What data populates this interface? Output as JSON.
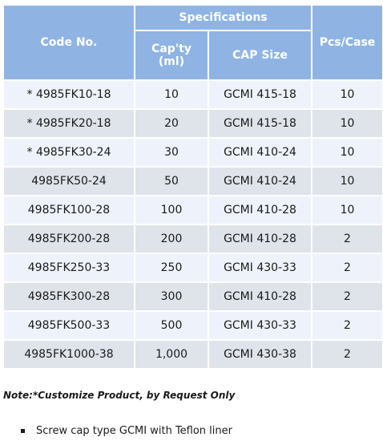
{
  "table": {
    "headers": {
      "code": "Code No.",
      "specifications": "Specifications",
      "capacity": "Cap'ty\n(ml)",
      "cap_size": "CAP Size",
      "pcs_case": "Pcs/Case"
    },
    "rows": [
      {
        "code": "* 4985FK10-18",
        "capacity": "10",
        "cap_size": "GCMI 415-18",
        "pcs": "10"
      },
      {
        "code": "* 4985FK20-18",
        "capacity": "20",
        "cap_size": "GCMI 415-18",
        "pcs": "10"
      },
      {
        "code": "* 4985FK30-24",
        "capacity": "30",
        "cap_size": "GCMI 410-24",
        "pcs": "10"
      },
      {
        "code": "4985FK50-24",
        "capacity": "50",
        "cap_size": "GCMI 410-24",
        "pcs": "10"
      },
      {
        "code": "4985FK100-28",
        "capacity": "100",
        "cap_size": "GCMI 410-28",
        "pcs": "10"
      },
      {
        "code": "4985FK200-28",
        "capacity": "200",
        "cap_size": "GCMI 410-28",
        "pcs": "2"
      },
      {
        "code": "4985FK250-33",
        "capacity": "250",
        "cap_size": "GCMI 430-33",
        "pcs": "2"
      },
      {
        "code": "4985FK300-28",
        "capacity": "300",
        "cap_size": "GCMI 410-28",
        "pcs": "2"
      },
      {
        "code": "4985FK500-33",
        "capacity": "500",
        "cap_size": "GCMI 430-33",
        "pcs": "2"
      },
      {
        "code": "4985FK1000-38",
        "capacity": "1,000",
        "cap_size": "GCMI 430-38",
        "pcs": "2"
      }
    ]
  },
  "note": "Note:*Customize Product, by Request Only",
  "bullets": [
    "Screw cap type GCMI with Teflon liner"
  ],
  "colors": {
    "header_bg": "#8fb4e3",
    "row_light": "#eef3fb",
    "row_dark": "#dfe3ea"
  }
}
